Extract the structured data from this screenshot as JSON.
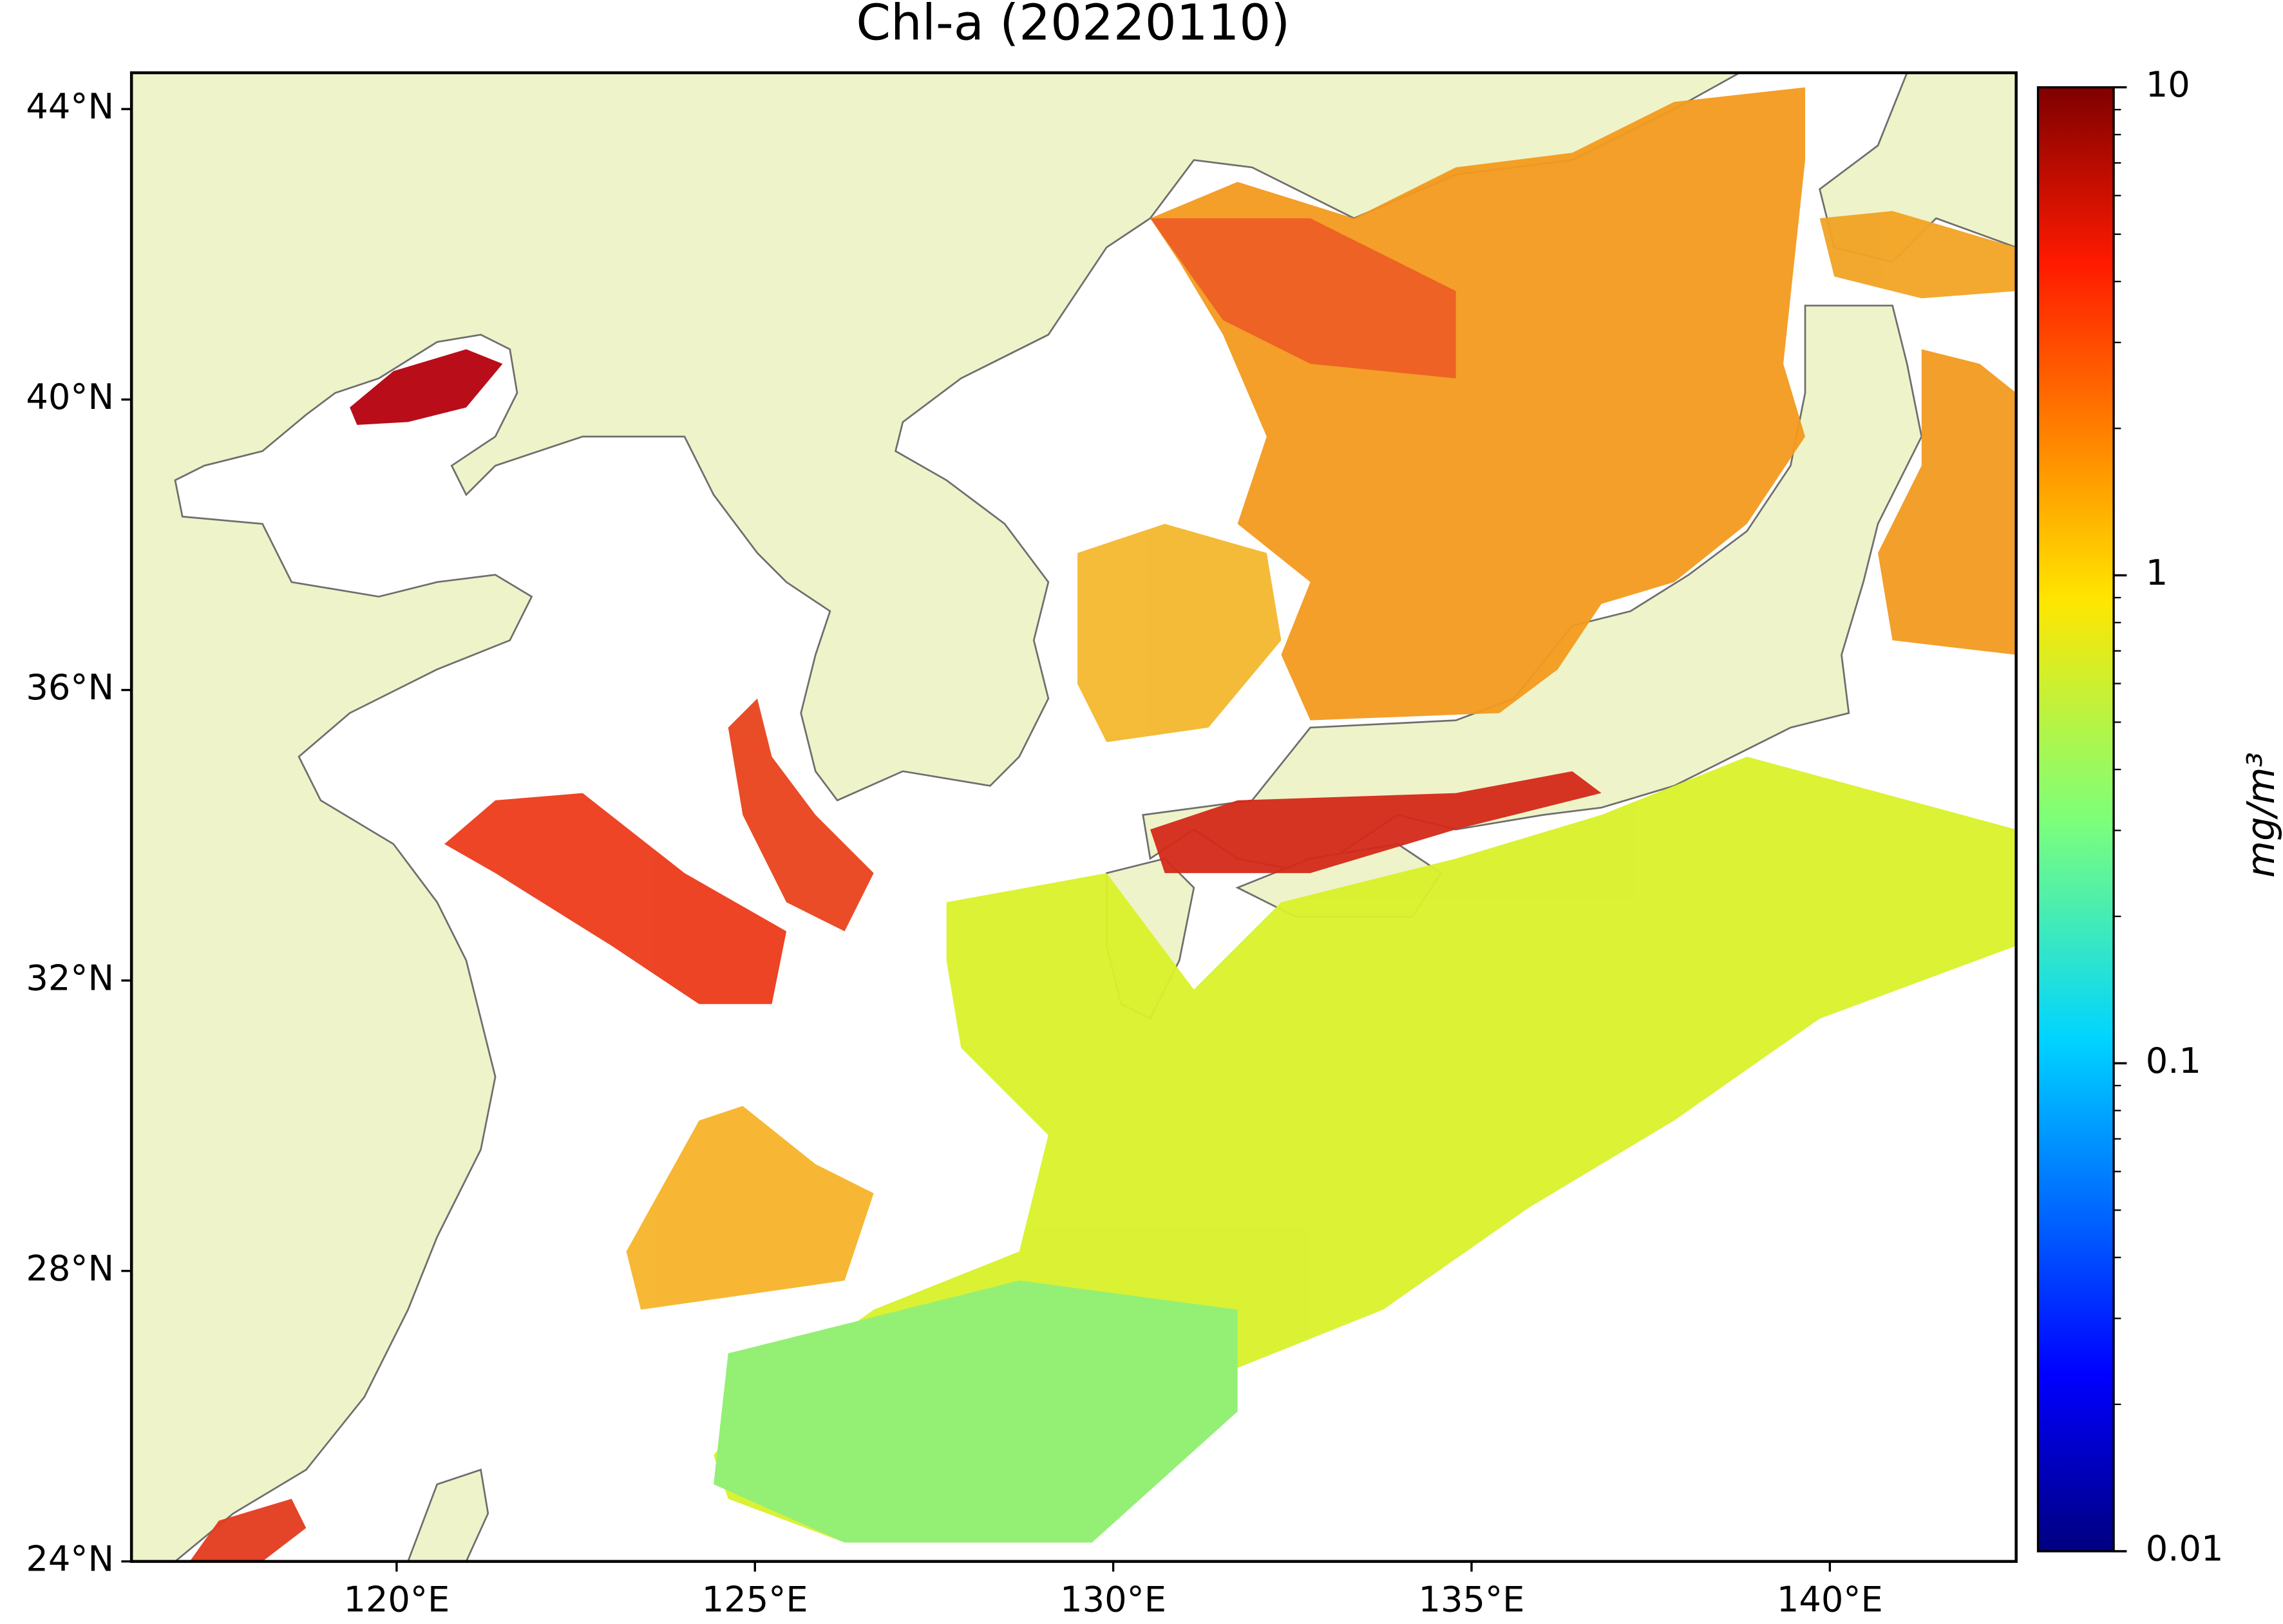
{
  "chart_data": {
    "type": "map",
    "title": "Chl-a (20220110)",
    "xlim": [
      116.3,
      142.6
    ],
    "ylim": [
      24,
      44.5
    ],
    "xticks": [
      {
        "value": 120,
        "label": "120°E"
      },
      {
        "value": 125,
        "label": "125°E"
      },
      {
        "value": 130,
        "label": "130°E"
      },
      {
        "value": 135,
        "label": "135°E"
      },
      {
        "value": 140,
        "label": "140°E"
      }
    ],
    "yticks": [
      {
        "value": 24,
        "label": "24°N"
      },
      {
        "value": 28,
        "label": "28°N"
      },
      {
        "value": 32,
        "label": "32°N"
      },
      {
        "value": 36,
        "label": "36°N"
      },
      {
        "value": 40,
        "label": "40°N"
      },
      {
        "value": 44,
        "label": "44°N"
      }
    ],
    "colorbar": {
      "label": "mg/m³",
      "log": true,
      "clim": [
        0.01,
        10
      ],
      "ticks": [
        0.01,
        0.1,
        1,
        10
      ]
    }
  }
}
